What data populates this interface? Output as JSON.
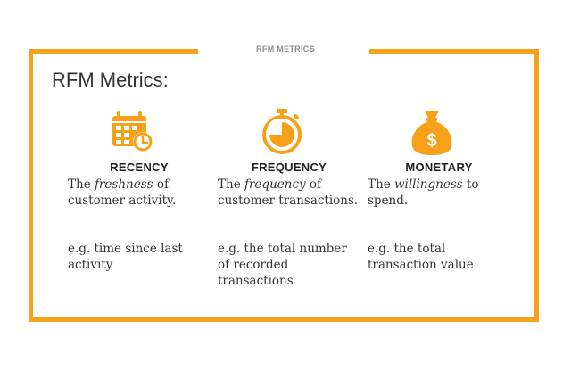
{
  "top_label": "RFM METRICS",
  "title": "RFM Metrics:",
  "accent_color": "#f7a11a",
  "columns": [
    {
      "icon": "calendar-clock-icon",
      "heading": "RECENCY",
      "desc_pre": "The ",
      "desc_em": "freshness",
      "desc_post": " of customer activity.",
      "example": "e.g. time since last activity"
    },
    {
      "icon": "stopwatch-icon",
      "heading": "FREQUENCY",
      "desc_pre": "The ",
      "desc_em": "frequency",
      "desc_post": " of customer transactions.",
      "example": "e.g. the total number of recorded transactions"
    },
    {
      "icon": "money-bag-icon",
      "heading": "MONETARY",
      "desc_pre": "The ",
      "desc_em": "willingness",
      "desc_post": " to spend.",
      "example": "e.g. the total transaction value"
    }
  ]
}
